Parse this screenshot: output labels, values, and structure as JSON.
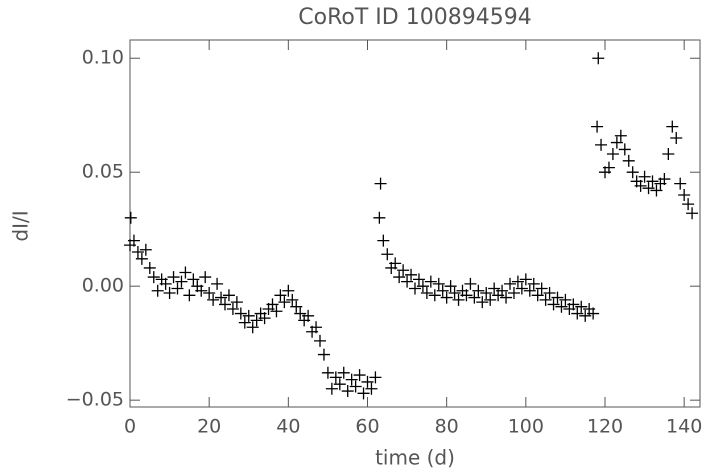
{
  "chart_data": {
    "type": "scatter",
    "title": "CoRoT ID 100894594",
    "x_label": "time (d)",
    "y_label": "dI/I",
    "marker": "+",
    "color": "#000000",
    "xlim": [
      0,
      144
    ],
    "ylim": [
      -0.053,
      0.108
    ],
    "xticks": [
      0,
      20,
      40,
      60,
      80,
      100,
      120,
      140
    ],
    "yticks": [
      {
        "value": -0.05,
        "label": "−0.05"
      },
      {
        "value": 0,
        "label": "0.00"
      },
      {
        "value": 0.05,
        "label": "0.05"
      },
      {
        "value": 0.1,
        "label": "0.10"
      }
    ],
    "x": [
      0,
      1,
      2,
      3,
      4,
      5,
      6,
      7,
      8,
      9,
      10,
      11,
      12,
      13,
      14,
      15,
      16,
      17,
      18,
      19,
      20,
      21,
      22,
      23,
      24,
      25,
      26,
      27,
      28,
      29,
      30,
      31,
      32,
      33,
      34,
      35,
      36,
      37,
      38,
      39,
      40,
      41,
      42,
      43,
      44,
      45,
      46,
      47,
      48,
      49,
      50,
      51,
      52,
      53,
      54,
      55,
      56,
      57,
      58,
      59,
      60,
      61,
      62,
      63,
      64,
      65,
      66,
      67,
      68,
      69,
      70,
      71,
      72,
      73,
      74,
      75,
      76,
      77,
      78,
      79,
      80,
      81,
      82,
      83,
      84,
      85,
      86,
      87,
      88,
      89,
      90,
      91,
      92,
      93,
      94,
      95,
      96,
      97,
      98,
      99,
      100,
      101,
      102,
      103,
      104,
      105,
      106,
      107,
      108,
      109,
      110,
      111,
      112,
      113,
      114,
      115,
      116,
      117,
      118,
      119,
      120,
      121,
      122,
      123,
      124,
      125,
      126,
      127,
      128,
      129,
      130,
      131,
      132,
      133,
      134,
      135,
      136,
      137,
      138,
      139,
      140,
      141,
      142,
      118.3,
      0.2,
      63.3
    ],
    "y": [
      0.018,
      0.02,
      0.015,
      0.012,
      0.016,
      0.008,
      0.004,
      -0.002,
      0.003,
      0.001,
      -0.003,
      0.004,
      -0.001,
      0.002,
      0.006,
      -0.004,
      0.003,
      0.0,
      -0.002,
      0.004,
      -0.003,
      -0.006,
      0.001,
      -0.005,
      -0.008,
      -0.004,
      -0.01,
      -0.007,
      -0.012,
      -0.016,
      -0.013,
      -0.018,
      -0.015,
      -0.012,
      -0.014,
      -0.01,
      -0.008,
      -0.011,
      -0.004,
      -0.007,
      -0.002,
      -0.006,
      -0.009,
      -0.012,
      -0.015,
      -0.013,
      -0.02,
      -0.018,
      -0.024,
      -0.03,
      -0.038,
      -0.045,
      -0.04,
      -0.043,
      -0.038,
      -0.046,
      -0.041,
      -0.044,
      -0.039,
      -0.047,
      -0.042,
      -0.045,
      -0.04,
      0.03,
      0.02,
      0.014,
      0.008,
      0.01,
      0.004,
      0.007,
      0.002,
      0.005,
      -0.001,
      0.003,
      0.0,
      -0.003,
      0.002,
      -0.004,
      0.001,
      -0.002,
      -0.005,
      0.0,
      -0.003,
      -0.006,
      -0.002,
      -0.004,
      0.001,
      -0.005,
      -0.002,
      -0.007,
      -0.003,
      -0.006,
      -0.001,
      -0.004,
      -0.002,
      -0.005,
      0.001,
      -0.003,
      0.002,
      -0.001,
      0.003,
      -0.002,
      0.001,
      -0.004,
      -0.001,
      -0.006,
      -0.003,
      -0.008,
      -0.005,
      -0.009,
      -0.006,
      -0.01,
      -0.008,
      -0.012,
      -0.009,
      -0.013,
      -0.01,
      -0.012,
      0.07,
      0.062,
      0.05,
      0.052,
      0.058,
      0.063,
      0.066,
      0.06,
      0.055,
      0.05,
      0.046,
      0.044,
      0.048,
      0.043,
      0.046,
      0.042,
      0.045,
      0.047,
      0.058,
      0.07,
      0.065,
      0.045,
      0.04,
      0.036,
      0.032,
      0.1,
      0.03,
      0.045
    ]
  }
}
